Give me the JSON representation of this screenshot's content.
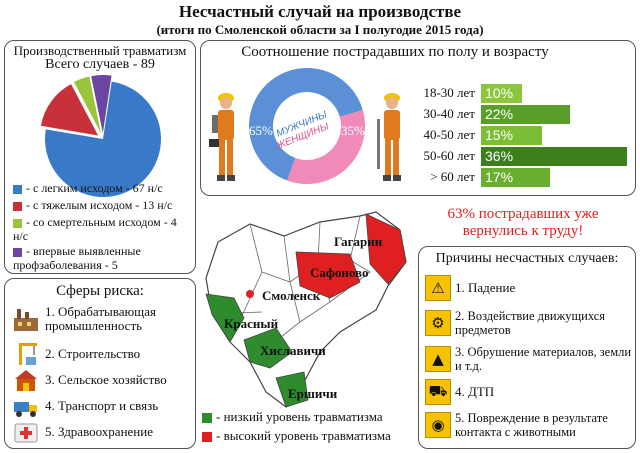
{
  "header": {
    "title": "Несчастный случай на производстве",
    "subtitle": "(итоги по Смоленской области за I полугодие 2015 года)"
  },
  "injury_panel": {
    "title": "Производственный травматизм",
    "total": "Всего случаев - 89",
    "legend": [
      {
        "text": "- с легким исходом - 67 н/с",
        "color": "#3a78c8"
      },
      {
        "text": "- с тяжелым исходом - 13 н/с",
        "color": "#c8303a"
      },
      {
        "text": "- со смертельным исходом - 4 н/с",
        "color": "#9bc33c"
      },
      {
        "text": "- впервые выявленные профзаболевания - 5",
        "color": "#6a46a0"
      }
    ]
  },
  "gender_age_panel": {
    "title": "Соотношение пострадавших по полу и возрасту",
    "male_label": "МУЖЧИНЫ",
    "female_label": "ЖЕНЩИНЫ",
    "male_pct": "65%",
    "female_pct": "35%"
  },
  "risk_panel": {
    "title": "Сферы риска:",
    "items": [
      {
        "label": "1. Обрабатывающая промышленность",
        "icon": "factory-icon"
      },
      {
        "label": "2. Строительство",
        "icon": "crane-icon"
      },
      {
        "label": "3. Сельское хозяйство",
        "icon": "barn-icon"
      },
      {
        "label": "4. Транспорт и связь",
        "icon": "truck-icon"
      },
      {
        "label": "5. Здравоохранение",
        "icon": "first-aid-icon"
      }
    ]
  },
  "map_panel": {
    "labels": {
      "smolensk": "Смоленск",
      "gagarin": "Гагарин",
      "safonovo": "Сафоново",
      "krasny": "Красный",
      "khislavichi": "Хиславичи",
      "ershichi": "Ершичи"
    },
    "legend_low": "- низкий уровень травматизма",
    "legend_high": "- высокий уровень травматизма",
    "colors": {
      "low": "#2e8b2e",
      "high": "#e02020"
    }
  },
  "return_note": "63% пострадавших уже вернулись к труду!",
  "causes_panel": {
    "title": "Причины несчастных случаев:",
    "items": [
      {
        "label": "1. Падение",
        "icon": "falling-person-icon"
      },
      {
        "label": "2. Воздействие движущихся предметов",
        "icon": "moving-machinery-icon"
      },
      {
        "label": "3. Обрушение материалов, земли и т.д.",
        "icon": "collapse-icon"
      },
      {
        "label": "4. ДТП",
        "icon": "car-crash-icon"
      },
      {
        "label": "5. Повреждение в результате контакта с животными",
        "icon": "animal-icon"
      }
    ]
  },
  "chart_data": [
    {
      "type": "pie",
      "title": "Производственный травматизм",
      "categories": [
        "с легким исходом",
        "с тяжелым исходом",
        "со смертельным исходом",
        "впервые выявленные профзаболевания"
      ],
      "values": [
        67,
        13,
        4,
        5
      ],
      "colors": [
        "#3a78c8",
        "#c8303a",
        "#9bc33c",
        "#6a46a0"
      ]
    },
    {
      "type": "pie",
      "title": "Соотношение пострадавших по полу",
      "categories": [
        "МУЖЧИНЫ",
        "ЖЕНЩИНЫ"
      ],
      "values": [
        65,
        35
      ],
      "colors": [
        "#5b8fd6",
        "#f08ab8"
      ]
    },
    {
      "type": "bar",
      "title": "Соотношение пострадавших по возрасту",
      "categories": [
        "18-30 лет",
        "30-40 лет",
        "40-50 лет",
        "50-60 лет",
        "> 60 лет"
      ],
      "values": [
        10,
        22,
        15,
        36,
        17
      ],
      "value_labels": [
        "10%",
        "22%",
        "15%",
        "36%",
        "17%"
      ],
      "colors": [
        "#8cc63f",
        "#5a9e2a",
        "#7bbd35",
        "#3d7f1d",
        "#6aae2f"
      ]
    }
  ]
}
